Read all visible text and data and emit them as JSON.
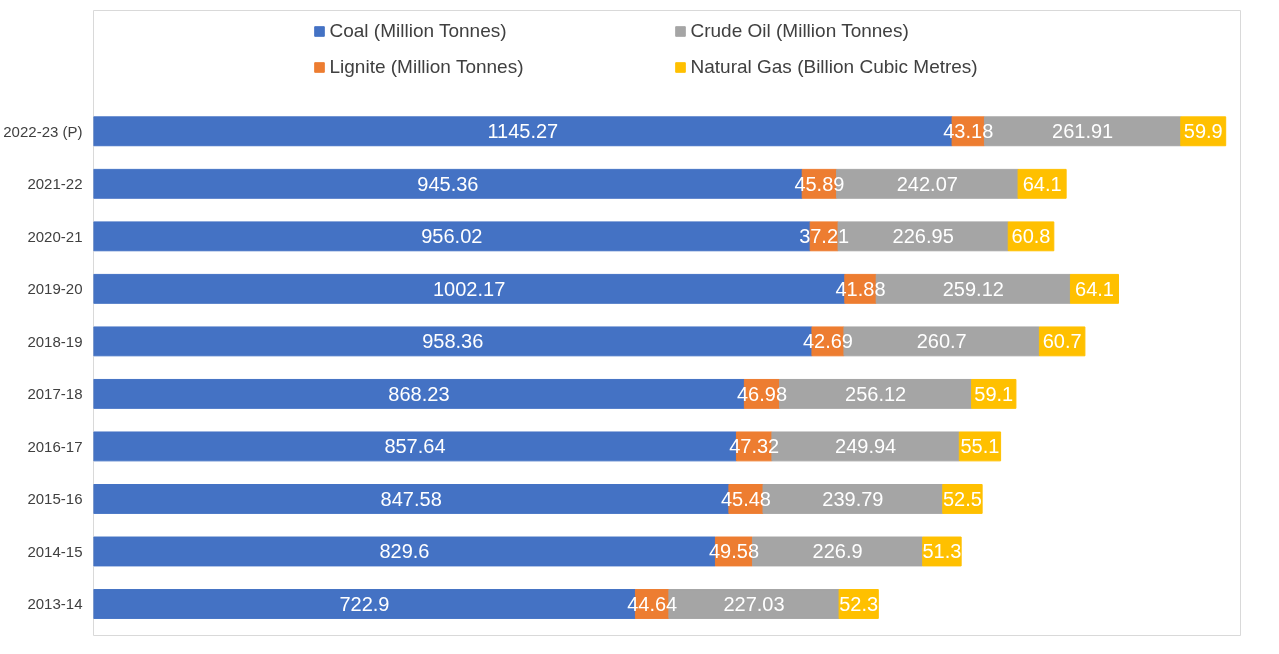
{
  "chart_data": {
    "type": "bar",
    "orientation": "horizontal",
    "stacked": true,
    "data_labels": true,
    "legend": "top",
    "xlim": [
      0,
      1530
    ],
    "categories": [
      "2022-23 (P)",
      "2021-22",
      "2020-21",
      "2019-20",
      "2018-19",
      "2017-18",
      "2016-17",
      "2015-16",
      "2014-15",
      "2013-14"
    ],
    "series": [
      {
        "name": "Coal (Million Tonnes)",
        "color": "#4472c4",
        "values": [
          1145.27,
          945.36,
          956.02,
          1002.17,
          958.36,
          868.23,
          857.64,
          847.58,
          829.6,
          722.9
        ]
      },
      {
        "name": "Lignite (Million Tonnes)",
        "color": "#ed7d31",
        "values": [
          43.18,
          45.89,
          37.21,
          41.88,
          42.69,
          46.98,
          47.32,
          45.48,
          49.58,
          44.64
        ]
      },
      {
        "name": "Crude Oil (Million Tonnes)",
        "color": "#a5a5a5",
        "values": [
          261.91,
          242.07,
          226.95,
          259.12,
          260.7,
          256.12,
          249.94,
          239.79,
          226.9,
          227.03
        ]
      },
      {
        "name": "Natural Gas (Billion Cubic Metres)",
        "color": "#ffc000",
        "values": [
          59.9,
          64.1,
          60.8,
          64.1,
          60.7,
          59.1,
          55.1,
          52.5,
          51.3,
          52.3
        ]
      }
    ]
  }
}
